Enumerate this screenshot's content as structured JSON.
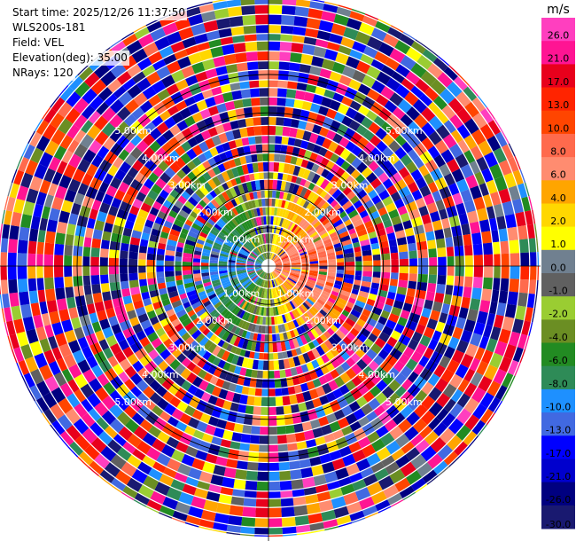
{
  "info": {
    "start_time": "Start time: 2025/12/26 11:37:50",
    "instrument": "WLS200s-181",
    "field": "Field: VEL",
    "elevation": "Elevation(deg): 35.00",
    "nrays": "NRays: 120"
  },
  "colorbar": {
    "unit": "m/s",
    "ticks": [
      "26.0",
      "21.0",
      "17.0",
      "13.0",
      "10.0",
      "8.0",
      "6.0",
      "4.0",
      "2.0",
      "1.0",
      "0.0",
      "-1.0",
      "-2.0",
      "-4.0",
      "-6.0",
      "-8.0",
      "-10.0",
      "-13.0",
      "-17.0",
      "-21.0",
      "-26.0",
      "-30.0"
    ],
    "colors": [
      "#ff3fbf",
      "#ff1493",
      "#e8001c",
      "#ff2400",
      "#ff4500",
      "#ff6a4d",
      "#ff8c70",
      "#ffa500",
      "#ffd700",
      "#ffff00",
      "#708090",
      "#606060",
      "#9acd32",
      "#6b8e23",
      "#228b22",
      "#2e8b57",
      "#1e90ff",
      "#4169e1",
      "#0000ff",
      "#0000cd",
      "#000080",
      "#191970"
    ]
  },
  "ring_labels": [
    "1.00km",
    "2.00km",
    "3.00km",
    "4.00km",
    "5.00km"
  ],
  "chart_data": {
    "type": "heatmap",
    "projection": "polar",
    "title": "",
    "field": "VEL",
    "units": "m/s",
    "elevation_deg": 35.0,
    "n_rays": 120,
    "range_rings_km": [
      1,
      2,
      3,
      4,
      5
    ],
    "max_range_km": 6.0,
    "colorbar_bounds": [
      -30,
      -26,
      -21,
      -17,
      -13,
      -10,
      -8,
      -6,
      -4,
      -2,
      -1,
      0,
      1,
      2,
      4,
      6,
      8,
      10,
      13,
      17,
      21,
      26
    ],
    "pattern": {
      "near_field_km": 1.5,
      "east_side": "positive velocities (~6-10 m/s, orange)",
      "west_side": "negative velocities (~-10 m/s, blue)",
      "north_south": "near zero (yellow/green)",
      "far_field": "noisy, values span full scale"
    }
  }
}
